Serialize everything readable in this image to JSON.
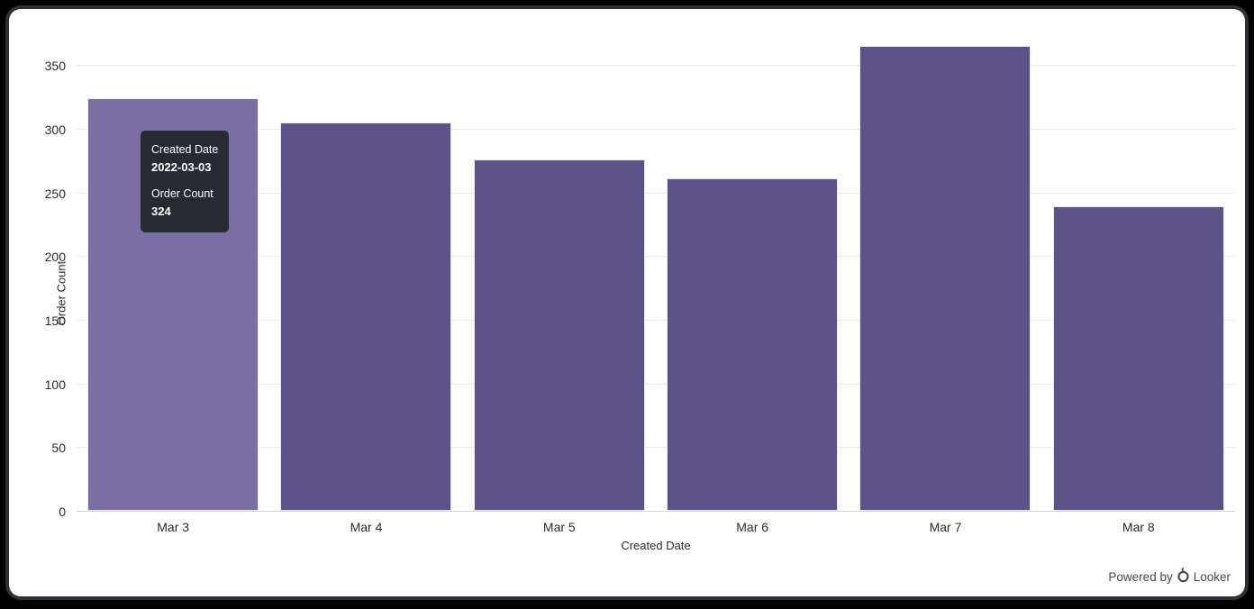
{
  "window": {
    "background": "#000000",
    "card_background": "#ffffff",
    "card_ring_color": "#2c3136"
  },
  "chart_data": {
    "type": "bar",
    "title": "",
    "categories": [
      "Mar 3",
      "Mar 4",
      "Mar 5",
      "Mar 6",
      "Mar 7",
      "Mar 8"
    ],
    "values": [
      324,
      305,
      276,
      261,
      365,
      239
    ],
    "xlabel": "Created Date",
    "ylabel": "Order Count",
    "yticks": [
      0,
      50,
      100,
      150,
      200,
      250,
      300,
      350
    ],
    "ylim": [
      0,
      375
    ],
    "grid": "horizontal",
    "legend_position": "none",
    "bar_color": "#5d5287",
    "bar_hover_color": "#7a6ea3",
    "bar_border_color": "#ffffff",
    "grid_color": "#ebebeb",
    "zero_line_color": "#ccd3e8",
    "hovered_index": 0
  },
  "tooltip": {
    "background": "#262b31",
    "text_color": "#ffffff",
    "rows": [
      {
        "label": "Created Date",
        "value": "2022-03-03"
      },
      {
        "label": "Order Count",
        "value": "324"
      }
    ]
  },
  "footer": {
    "powered_by": "Powered by",
    "brand": "Looker",
    "color": "#454a50"
  }
}
